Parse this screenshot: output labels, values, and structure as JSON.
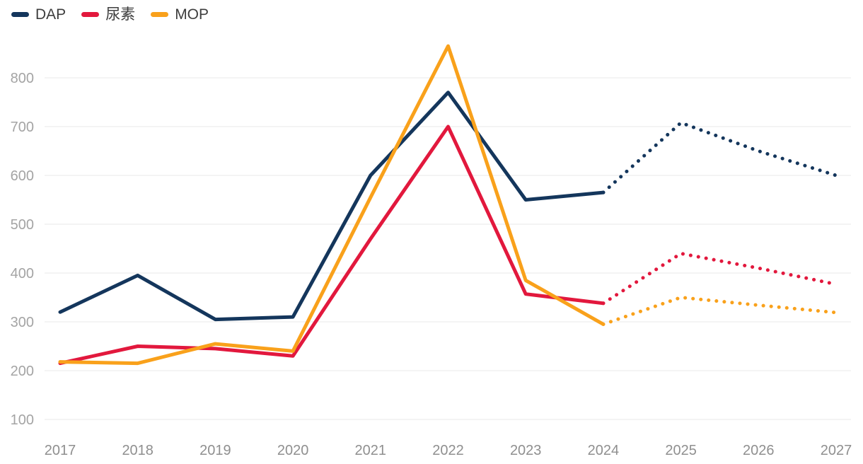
{
  "legend": {
    "items": [
      {
        "key": "dap",
        "label": "DAP",
        "color": "#14365c"
      },
      {
        "key": "urea",
        "label": "尿素",
        "color": "#e2183d"
      },
      {
        "key": "mop",
        "label": "MOP",
        "color": "#f9a11b"
      }
    ]
  },
  "chart_data": {
    "type": "line",
    "title": "",
    "xlabel": "",
    "ylabel": "",
    "x": [
      "2017",
      "2018",
      "2019",
      "2020",
      "2021",
      "2022",
      "2023",
      "2024",
      "2025",
      "2026",
      "2027"
    ],
    "series": [
      {
        "key": "dap",
        "name": "DAP",
        "color": "#14365c",
        "values": [
          320,
          395,
          305,
          310,
          600,
          770,
          550,
          565,
          708,
          650,
          600
        ],
        "solid_until_x": "2024",
        "dotted_after_x": "2024"
      },
      {
        "key": "urea",
        "name": "尿素",
        "color": "#e2183d",
        "values": [
          215,
          250,
          245,
          230,
          470,
          700,
          357,
          338,
          440,
          410,
          377
        ],
        "solid_until_x": "2024",
        "dotted_after_x": "2024"
      },
      {
        "key": "mop",
        "name": "MOP",
        "color": "#f9a11b",
        "values": [
          218,
          215,
          255,
          240,
          555,
          865,
          385,
          295,
          350,
          334,
          319
        ],
        "solid_until_x": "2024",
        "dotted_after_x": "2024"
      }
    ],
    "yticks": [
      100,
      200,
      300,
      400,
      500,
      600,
      700,
      800
    ],
    "ylim": [
      100,
      800
    ],
    "grid": "horizontal-only",
    "legend_position": "top-left",
    "colors": {
      "background": "#ffffff",
      "gridline": "#e8e8e8",
      "y_tick_label": "#a4a4a4",
      "x_tick_label": "#8f8f8f",
      "legend_text": "#3d3d3d"
    }
  }
}
